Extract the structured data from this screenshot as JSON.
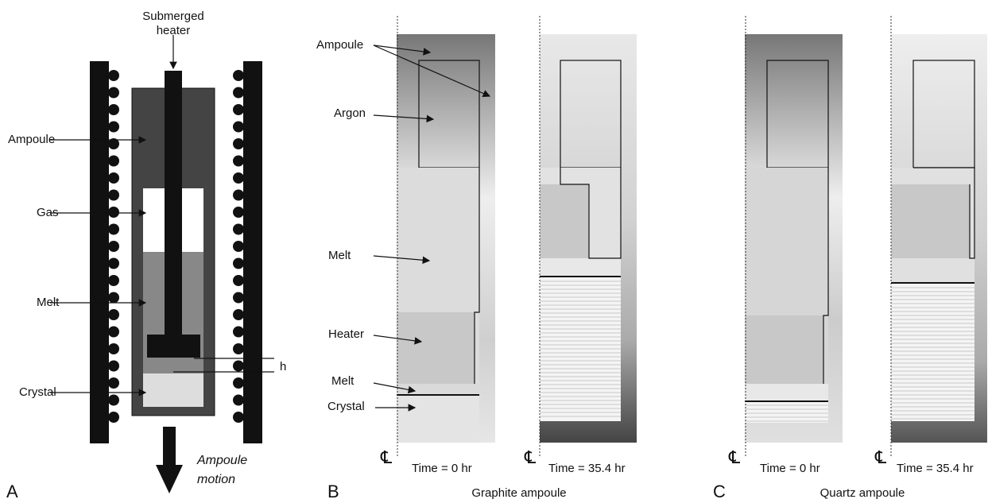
{
  "panel_a": {
    "letter": "A",
    "heater_label": [
      "Submerged",
      "heater"
    ],
    "labels": [
      "Ampoule",
      "Gas",
      "Melt",
      "Crystal"
    ],
    "h": "h",
    "motion": [
      "Ampoule",
      "motion"
    ]
  },
  "panel_b": {
    "letter": "B",
    "labels": [
      "Ampoule",
      "Argon",
      "Melt",
      "Heater",
      "Melt",
      "Crystal"
    ],
    "centerlines": [
      "℄",
      "℄"
    ],
    "times": [
      "Time = 0 hr",
      "Time = 35.4 hr"
    ],
    "caption": "Graphite ampoule"
  },
  "panel_c": {
    "letter": "C",
    "centerlines": [
      "℄",
      "℄"
    ],
    "times": [
      "Time = 0 hr",
      "Time = 35.4 hr"
    ],
    "caption": "Quartz ampoule"
  }
}
